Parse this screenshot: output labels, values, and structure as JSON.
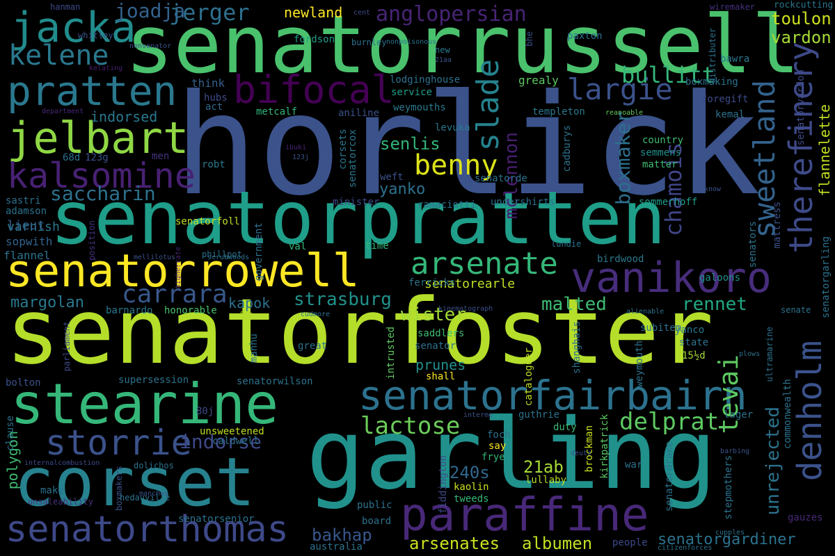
{
  "words": [
    {
      "text": "horlick",
      "color": "#3b528b"
    },
    {
      "text": "senatorfoster",
      "color": "#b5de2b"
    },
    {
      "text": "garling",
      "color": "#21918c"
    },
    {
      "text": "senatorrussell",
      "color": "#4ac16d"
    },
    {
      "text": "senatorpratten",
      "color": "#1f9e89"
    },
    {
      "text": "corset",
      "color": "#26828e"
    },
    {
      "text": "stearine",
      "color": "#35b779"
    },
    {
      "text": "senatorrowell",
      "color": "#fde725"
    },
    {
      "text": "senatorfairbairn",
      "color": "#2c728e"
    },
    {
      "text": "paraffine",
      "color": "#482878"
    },
    {
      "text": "senatorthomas",
      "color": "#3e4989"
    },
    {
      "text": "vanikoro",
      "color": "#472d7b"
    },
    {
      "text": "pratten",
      "color": "#2a788e"
    },
    {
      "text": "jelbart",
      "color": "#8fd744"
    },
    {
      "text": "kalsomine",
      "color": "#482173"
    },
    {
      "text": "jacka",
      "color": "#228c8d"
    },
    {
      "text": "bifocal",
      "color": "#440154"
    },
    {
      "text": "storrie",
      "color": "#3b528b"
    },
    {
      "text": "arsenate",
      "color": "#35b779"
    },
    {
      "text": "therefinery",
      "color": "#3e4a89"
    },
    {
      "text": "sweetland",
      "color": "#33638d"
    },
    {
      "text": "denholm",
      "color": "#3b528b"
    },
    {
      "text": "kelene",
      "color": "#2a788e"
    },
    {
      "text": "largie",
      "color": "#3b528b"
    },
    {
      "text": "slade",
      "color": "#26828e"
    },
    {
      "text": "benny",
      "color": "#dde318"
    },
    {
      "text": "carrara",
      "color": "#38588c"
    },
    {
      "text": "anglopersian",
      "color": "#482475"
    },
    {
      "text": "jerger",
      "color": "#2d708e"
    },
    {
      "text": "joadja",
      "color": "#33638d"
    },
    {
      "text": "bullitt",
      "color": "#35b779"
    },
    {
      "text": "tevai",
      "color": "#5ec962"
    },
    {
      "text": "unrejected",
      "color": "#2c728e"
    },
    {
      "text": "delprat",
      "color": "#5ec962"
    },
    {
      "text": "lactose",
      "color": "#6ccd5a"
    },
    {
      "text": "chamois",
      "color": "#404588"
    },
    {
      "text": "boxmaker",
      "color": "#2d708e"
    },
    {
      "text": "mclennon",
      "color": "#481f70"
    },
    {
      "text": "saccharin",
      "color": "#2c728e"
    },
    {
      "text": "indorse",
      "color": "#3e4989"
    },
    {
      "text": "strasburg",
      "color": "#21918c"
    },
    {
      "text": "wister",
      "color": "#a2da37"
    },
    {
      "text": "rennet",
      "color": "#22a884"
    },
    {
      "text": "malted",
      "color": "#3fbc73"
    },
    {
      "text": "margolan",
      "color": "#2a788e"
    },
    {
      "text": "kapok",
      "color": "#2c728e"
    },
    {
      "text": "flannelette",
      "color": "#c2df23"
    },
    {
      "text": "newland",
      "color": "#fde725"
    },
    {
      "text": "toulon",
      "color": "#cde11d"
    },
    {
      "text": "vardon",
      "color": "#a5db36"
    },
    {
      "text": "senlis",
      "color": "#32b67a"
    },
    {
      "text": "yanko",
      "color": "#2c728e"
    },
    {
      "text": "senatorearle",
      "color": "#bddf26"
    },
    {
      "text": "senatorgardiner",
      "color": "#2c728e"
    },
    {
      "text": "arsenates",
      "color": "#cae11f"
    },
    {
      "text": "albumen",
      "color": "#c2df23"
    },
    {
      "text": "bakhap",
      "color": "#38588c"
    },
    {
      "text": "21ab",
      "color": "#a5db36"
    },
    {
      "text": "240s",
      "color": "#31688e"
    },
    {
      "text": "prunes",
      "color": "#21918c"
    },
    {
      "text": "indorsed",
      "color": "#2a788e"
    },
    {
      "text": "varnish",
      "color": "#2a788e"
    },
    {
      "text": "lieut",
      "color": "#34608d"
    },
    {
      "text": "polygon",
      "color": "#3fbc73"
    },
    {
      "text": "sopwith",
      "color": "#33638d"
    },
    {
      "text": "adamson",
      "color": "#2c728e"
    },
    {
      "text": "sastri",
      "color": "#2d708e"
    },
    {
      "text": "flannel",
      "color": "#2c728e"
    },
    {
      "text": "bolton",
      "color": "#3b528b"
    },
    {
      "text": "68d",
      "color": "#2d708e"
    },
    {
      "text": "123g",
      "color": "#3b528b"
    },
    {
      "text": "men",
      "color": "#46337e"
    },
    {
      "text": "think",
      "color": "#355f8d"
    },
    {
      "text": "hubs",
      "color": "#3e4a89"
    },
    {
      "text": "act",
      "color": "#31688e"
    },
    {
      "text": "metcalf",
      "color": "#32b67a"
    },
    {
      "text": "robt",
      "color": "#2a788e"
    },
    {
      "text": "fordson",
      "color": "#1f9e89"
    },
    {
      "text": "burnley",
      "color": "#2c728e"
    },
    {
      "text": "whitley",
      "color": "#3b528b"
    },
    {
      "text": "nonsenator",
      "color": "#3b528b"
    },
    {
      "text": "hanman",
      "color": "#3e4a89"
    },
    {
      "text": "cent",
      "color": "#3e4989"
    },
    {
      "text": "nonpoisonous",
      "color": "#2c728e"
    },
    {
      "text": "paxton",
      "color": "#2c728e"
    },
    {
      "text": "wiremaker",
      "color": "#46327e"
    },
    {
      "text": "rockcutting",
      "color": "#2a788e"
    },
    {
      "text": "bawra",
      "color": "#2a788e"
    },
    {
      "text": "boxmaking",
      "color": "#2c728e"
    },
    {
      "text": "foregift",
      "color": "#3e4a89"
    },
    {
      "text": "kemal",
      "color": "#2c728e"
    },
    {
      "text": "grealy",
      "color": "#5ec962"
    },
    {
      "text": "templeton",
      "color": "#2a788e"
    },
    {
      "text": "reanoable",
      "color": "#65cb5e"
    },
    {
      "text": "country",
      "color": "#3fbc73"
    },
    {
      "text": "semmens",
      "color": "#21918c"
    },
    {
      "text": "matter",
      "color": "#3fbc73"
    },
    {
      "text": "department",
      "color": "#482878"
    },
    {
      "text": "kelating",
      "color": "#481f70"
    },
    {
      "text": "lodginghouse",
      "color": "#2c728e"
    },
    {
      "text": "service",
      "color": "#1f9e89"
    },
    {
      "text": "weymouths",
      "color": "#2a788e"
    },
    {
      "text": "aniline",
      "color": "#3b528b"
    },
    {
      "text": "levuka",
      "color": "#2a788e"
    },
    {
      "text": "corsets",
      "color": "#2a788e"
    },
    {
      "text": "senatorcox",
      "color": "#2a788e"
    },
    {
      "text": "weft",
      "color": "#3b528b"
    },
    {
      "text": "senatorde",
      "color": "#2c728e"
    },
    {
      "text": "cadburys",
      "color": "#2c728e"
    },
    {
      "text": "ibuki",
      "color": "#482475"
    },
    {
      "text": "123j",
      "color": "#3b528b"
    },
    {
      "text": "minister",
      "color": "#3e4a89"
    },
    {
      "text": "ramaciotti",
      "color": "#2c728e"
    },
    {
      "text": "undershirts",
      "color": "#2c728e"
    },
    {
      "text": "sommerhoff",
      "color": "#1f9e89"
    },
    {
      "text": "know",
      "color": "#3b528b"
    },
    {
      "text": "senatorfoll",
      "color": "#c2df23"
    },
    {
      "text": "government",
      "color": "#2c728e"
    },
    {
      "text": "distributer",
      "color": "#2c728e"
    },
    {
      "text": "new",
      "color": "#2a788e"
    },
    {
      "text": "21aa",
      "color": "#3b528b"
    },
    {
      "text": "bhe",
      "color": "#3b528b"
    },
    {
      "text": "senatorvardon",
      "color": "#3e4a89"
    },
    {
      "text": "senatorgarling",
      "color": "#2c728e"
    },
    {
      "text": "mattress",
      "color": "#3b528b"
    },
    {
      "text": "senators",
      "color": "#2c728e"
    },
    {
      "text": "galoons",
      "color": "#21918c"
    },
    {
      "text": "birdwood",
      "color": "#2a788e"
    },
    {
      "text": "lundie",
      "color": "#2c728e"
    },
    {
      "text": "time",
      "color": "#35b779"
    },
    {
      "text": "val",
      "color": "#35b779"
    },
    {
      "text": "position",
      "color": "#46327e"
    },
    {
      "text": "higherrate",
      "color": "#482878"
    },
    {
      "text": "phillpot",
      "color": "#2c728e"
    },
    {
      "text": "mellilotus",
      "color": "#3b528b"
    },
    {
      "text": "scrubwoods",
      "color": "#2c728e"
    },
    {
      "text": "ferricks",
      "color": "#2c728e"
    },
    {
      "text": "barnardo",
      "color": "#2a788e"
    },
    {
      "text": "honorable",
      "color": "#4ac16d"
    },
    {
      "text": "80k",
      "color": "#b5de2b"
    },
    {
      "text": "cudmore",
      "color": "#2c728e"
    },
    {
      "text": "kinematograph",
      "color": "#3b528b"
    },
    {
      "text": "alienable",
      "color": "#2c728e"
    },
    {
      "text": "senate",
      "color": "#2c728e"
    },
    {
      "text": "subitem",
      "color": "#2c728e"
    },
    {
      "text": "weymouth",
      "color": "#2c728e"
    },
    {
      "text": "shanghais",
      "color": "#2c728e"
    },
    {
      "text": "saddlers",
      "color": "#3fbc73"
    },
    {
      "text": "cataloguer",
      "color": "#bddf26"
    },
    {
      "text": "senator",
      "color": "#2c728e"
    },
    {
      "text": "great",
      "color": "#2c728e"
    },
    {
      "text": "intrusted",
      "color": "#5ec962"
    },
    {
      "text": "manhu",
      "color": "#2c728e"
    },
    {
      "text": "parliament",
      "color": "#3e4a89"
    },
    {
      "text": "yanco",
      "color": "#2a788e"
    },
    {
      "text": "state",
      "color": "#2c728e"
    },
    {
      "text": "15½d",
      "color": "#a5db36"
    },
    {
      "text": "plows",
      "color": "#2c728e"
    },
    {
      "text": "ultramarine",
      "color": "#2c728e"
    },
    {
      "text": "commonwealth",
      "color": "#2c728e"
    },
    {
      "text": "shall",
      "color": "#fde725"
    },
    {
      "text": "supersession",
      "color": "#2c728e"
    },
    {
      "text": "senatorwilson",
      "color": "#2c728e"
    },
    {
      "text": "80j",
      "color": "#3e4a89"
    },
    {
      "text": "clause",
      "color": "#2c728e"
    },
    {
      "text": "unsweetened",
      "color": "#c2df23"
    },
    {
      "text": "caldwell",
      "color": "#2c728e"
    },
    {
      "text": "guthrie",
      "color": "#2c728e"
    },
    {
      "text": "duty",
      "color": "#3fbc73"
    },
    {
      "text": "foch",
      "color": "#2c728e"
    },
    {
      "text": "say",
      "color": "#fde725"
    },
    {
      "text": "frye",
      "color": "#35b779"
    },
    {
      "text": "lager",
      "color": "#2c728e"
    },
    {
      "text": "interme",
      "color": "#3b528b"
    },
    {
      "text": "barbing",
      "color": "#3b528b"
    },
    {
      "text": "internalcombustion",
      "color": "#3e4a89"
    },
    {
      "text": "dolichos",
      "color": "#2c728e"
    },
    {
      "text": "boxmakers",
      "color": "#3b528b"
    },
    {
      "text": "fiddington",
      "color": "#3e4a89"
    },
    {
      "text": "brockman",
      "color": "#cae11f"
    },
    {
      "text": "kirkpatrick",
      "color": "#5ec962"
    },
    {
      "text": "deutz",
      "color": "#3b528b"
    },
    {
      "text": "war",
      "color": "#2c728e"
    },
    {
      "text": "senatordrake",
      "color": "#2c728e"
    },
    {
      "text": "stepmothers",
      "color": "#2c728e"
    },
    {
      "text": "lullaby",
      "color": "#b5de2b"
    },
    {
      "text": "kaolin",
      "color": "#cae11f"
    },
    {
      "text": "make",
      "color": "#2c728e"
    },
    {
      "text": "manchus",
      "color": "#3b528b"
    },
    {
      "text": "unsaleability",
      "color": "#46327e"
    },
    {
      "text": "hedauville",
      "color": "#2c728e"
    },
    {
      "text": "senatorsenior",
      "color": "#2c728e"
    },
    {
      "text": "tweeds",
      "color": "#35b779"
    },
    {
      "text": "public",
      "color": "#2c728e"
    },
    {
      "text": "board",
      "color": "#2c728e"
    },
    {
      "text": "australia",
      "color": "#2c728e"
    },
    {
      "text": "people",
      "color": "#3e4a89"
    },
    {
      "text": "cupples",
      "color": "#2c728e"
    },
    {
      "text": "citizenforces",
      "color": "#2c728e"
    },
    {
      "text": "gauzes",
      "color": "#482878"
    }
  ]
}
